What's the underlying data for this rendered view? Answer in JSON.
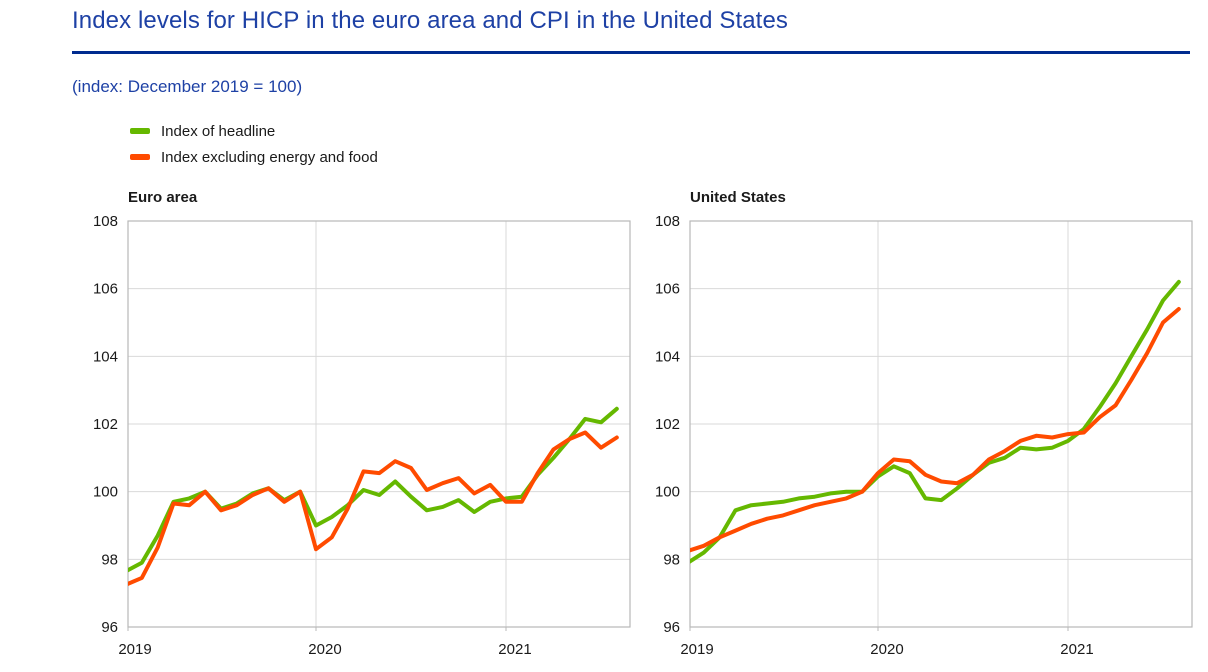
{
  "header": {
    "title": "Index levels for HICP in the euro area and CPI in the United States",
    "subtitle": "(index: December 2019 = 100)"
  },
  "legend": {
    "items": [
      {
        "label": "Index of headline",
        "color": "#65B800"
      },
      {
        "label": "Index excluding energy and food",
        "color": "#FF4B00"
      }
    ]
  },
  "colors": {
    "title_text": "#1E41A5",
    "title_rule": "#002B8F",
    "axis_text": "#1a1a1a",
    "grid": "#d9d9d9",
    "plot_border": "#b8b8b8"
  },
  "chart_data": [
    {
      "type": "line",
      "title": "Euro area",
      "x": [
        "2019-01",
        "2019-02",
        "2019-03",
        "2019-04",
        "2019-05",
        "2019-06",
        "2019-07",
        "2019-08",
        "2019-09",
        "2019-10",
        "2019-11",
        "2019-12",
        "2020-01",
        "2020-02",
        "2020-03",
        "2020-04",
        "2020-05",
        "2020-06",
        "2020-07",
        "2020-08",
        "2020-09",
        "2020-10",
        "2020-11",
        "2020-12",
        "2021-01",
        "2021-02",
        "2021-03",
        "2021-04",
        "2021-05",
        "2021-06",
        "2021-07",
        "2021-08"
      ],
      "xticks": [
        {
          "label": "2019",
          "month_index": 0
        },
        {
          "label": "2020",
          "month_index": 12
        },
        {
          "label": "2021",
          "month_index": 24
        }
      ],
      "ylim": [
        96,
        108
      ],
      "ytick_step": 2,
      "grid": true,
      "series": [
        {
          "name": "Index of headline",
          "color": "#65B800",
          "values": [
            97.65,
            97.9,
            98.7,
            99.7,
            99.8,
            100.0,
            99.5,
            99.65,
            99.95,
            100.1,
            99.75,
            100.0,
            99.0,
            99.25,
            99.6,
            100.05,
            99.9,
            100.3,
            99.85,
            99.45,
            99.55,
            99.75,
            99.4,
            99.7,
            99.8,
            99.85,
            100.5,
            101.0,
            101.55,
            102.15,
            102.05,
            102.45
          ]
        },
        {
          "name": "Index excluding energy and food",
          "color": "#FF4B00",
          "values": [
            97.25,
            97.45,
            98.35,
            99.65,
            99.6,
            100.0,
            99.45,
            99.6,
            99.9,
            100.1,
            99.7,
            100.0,
            98.3,
            98.65,
            99.5,
            100.6,
            100.55,
            100.9,
            100.7,
            100.05,
            100.25,
            100.4,
            99.95,
            100.2,
            99.7,
            99.7,
            100.55,
            101.25,
            101.55,
            101.75,
            101.3,
            101.6
          ]
        }
      ]
    },
    {
      "type": "line",
      "title": "United States",
      "x": [
        "2019-01",
        "2019-02",
        "2019-03",
        "2019-04",
        "2019-05",
        "2019-06",
        "2019-07",
        "2019-08",
        "2019-09",
        "2019-10",
        "2019-11",
        "2019-12",
        "2020-01",
        "2020-02",
        "2020-03",
        "2020-04",
        "2020-05",
        "2020-06",
        "2020-07",
        "2020-08",
        "2020-09",
        "2020-10",
        "2020-11",
        "2020-12",
        "2021-01",
        "2021-02",
        "2021-03",
        "2021-04",
        "2021-05",
        "2021-06",
        "2021-07",
        "2021-08"
      ],
      "xticks": [
        {
          "label": "2019",
          "month_index": 0
        },
        {
          "label": "2020",
          "month_index": 12
        },
        {
          "label": "2021",
          "month_index": 24
        }
      ],
      "ylim": [
        96,
        108
      ],
      "ytick_step": 2,
      "grid": true,
      "series": [
        {
          "name": "Index of headline",
          "color": "#65B800",
          "values": [
            97.9,
            98.2,
            98.65,
            99.45,
            99.6,
            99.65,
            99.7,
            99.8,
            99.85,
            99.95,
            100.0,
            100.0,
            100.45,
            100.75,
            100.55,
            99.8,
            99.75,
            100.1,
            100.5,
            100.85,
            101.0,
            101.3,
            101.25,
            101.3,
            101.5,
            101.85,
            102.5,
            103.2,
            104.0,
            104.8,
            105.65,
            106.2
          ]
        },
        {
          "name": "Index excluding energy and food",
          "color": "#FF4B00",
          "values": [
            98.25,
            98.4,
            98.65,
            98.85,
            99.05,
            99.2,
            99.3,
            99.45,
            99.6,
            99.7,
            99.8,
            100.0,
            100.55,
            100.95,
            100.9,
            100.5,
            100.3,
            100.25,
            100.5,
            100.95,
            101.2,
            101.5,
            101.65,
            101.6,
            101.7,
            101.75,
            102.2,
            102.55,
            103.3,
            104.1,
            105.0,
            105.4
          ]
        }
      ]
    }
  ]
}
